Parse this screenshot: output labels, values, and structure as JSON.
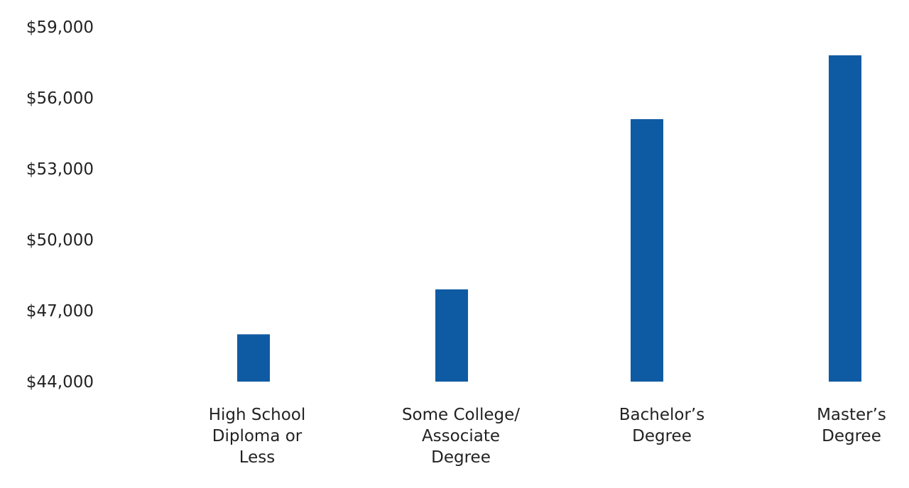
{
  "chart_data": {
    "type": "bar",
    "title": "",
    "xlabel": "",
    "ylabel": "",
    "categories": [
      [
        "High School",
        "Diploma or",
        "Less"
      ],
      [
        "Some College/",
        "Associate",
        "Degree"
      ],
      [
        "Bachelor’s",
        "Degree"
      ],
      [
        "Master’s",
        "Degree"
      ]
    ],
    "values": [
      46000,
      47900,
      55100,
      57800
    ],
    "ylim": [
      44000,
      59000
    ],
    "yticks": [
      44000,
      47000,
      50000,
      53000,
      56000,
      59000
    ],
    "ytick_labels": [
      "$44,000",
      "$47,000",
      "$50,000",
      "$53,000",
      "$56,000",
      "$59,000"
    ],
    "grid": false,
    "legend": "none",
    "bar_color": "#0f5ba3"
  }
}
